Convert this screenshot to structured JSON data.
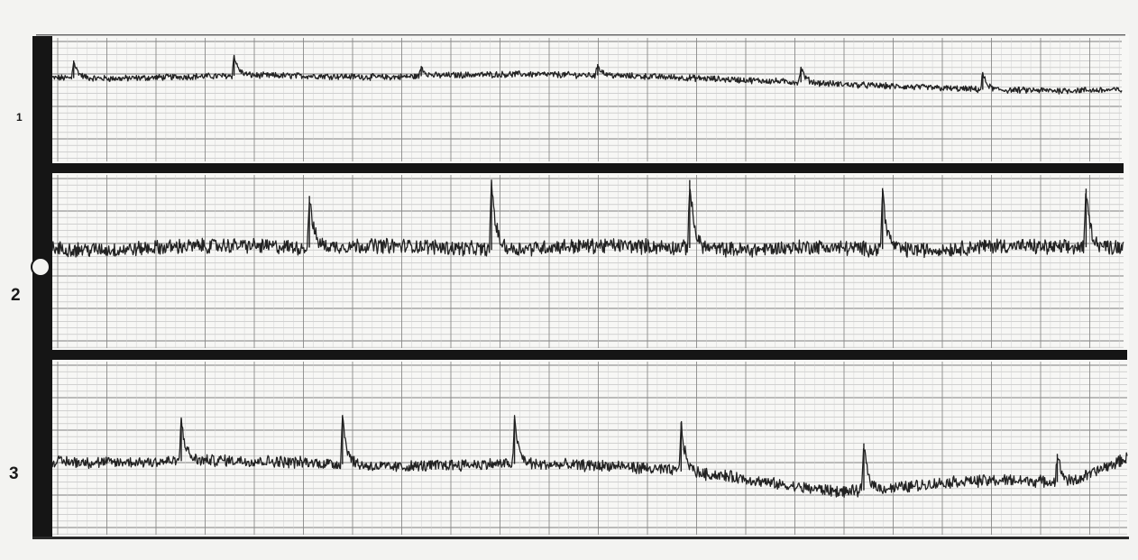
{
  "chart_data": {
    "type": "line",
    "title": "",
    "xlabel": "",
    "ylabel": "",
    "grid": true,
    "legend": "none",
    "strips": [
      {
        "label": "1",
        "baseline_profile": [
          0.4,
          0.35,
          0.5,
          0.6,
          0.55,
          0.45,
          0.62,
          0.7,
          0.62,
          0.5,
          0.3,
          0.1,
          -0.15,
          -0.35,
          -0.55,
          -0.6,
          -0.55
        ],
        "spikes": [
          {
            "x": 0.02,
            "height": 1.4
          },
          {
            "x": 0.17,
            "height": 1.6
          },
          {
            "x": 0.345,
            "height": 0.8
          },
          {
            "x": 0.51,
            "height": 0.9
          },
          {
            "x": 0.7,
            "height": 1.2
          },
          {
            "x": 0.87,
            "height": 1.3
          }
        ],
        "noise": 0.22
      },
      {
        "label": "2",
        "baseline_profile": [
          0.0,
          -0.05,
          0.1,
          0.15,
          0.05,
          0.15,
          0.1,
          -0.05,
          0.1,
          0.15,
          0.05,
          -0.05,
          0.1,
          0.0,
          -0.05,
          0.15,
          0.05,
          0.1
        ],
        "spikes": [
          {
            "x": 0.24,
            "height": 2.2
          },
          {
            "x": 0.41,
            "height": 3.0
          },
          {
            "x": 0.595,
            "height": 2.9
          },
          {
            "x": 0.775,
            "height": 2.6
          },
          {
            "x": 0.965,
            "height": 2.5
          }
        ],
        "noise": 0.28
      },
      {
        "label": "3",
        "baseline_profile": [
          0.05,
          0.0,
          0.05,
          0.1,
          0.05,
          -0.05,
          -0.2,
          -0.1,
          -0.05,
          -0.1,
          -0.15,
          -0.35,
          -0.6,
          -1.0,
          -1.25,
          -1.05,
          -0.8,
          -0.75,
          -0.85,
          0.2
        ],
        "spikes": [
          {
            "x": 0.12,
            "height": 1.8
          },
          {
            "x": 0.27,
            "height": 2.1
          },
          {
            "x": 0.43,
            "height": 1.9
          },
          {
            "x": 0.585,
            "height": 2.1
          },
          {
            "x": 0.755,
            "height": 2.0
          },
          {
            "x": 0.935,
            "height": 1.2
          }
        ],
        "noise": 0.22
      }
    ]
  }
}
